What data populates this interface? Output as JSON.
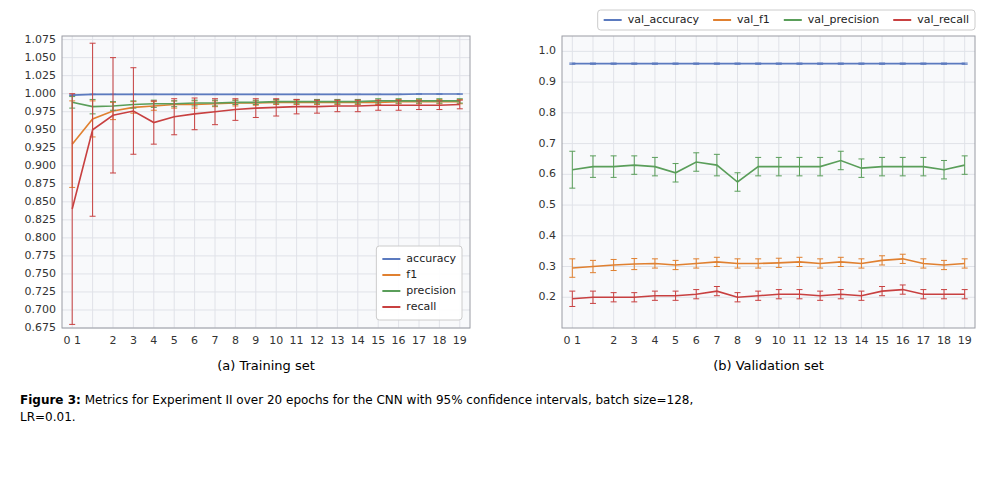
{
  "chart_data": [
    {
      "type": "line",
      "xlabel": "(a) Training set",
      "categories": [
        "0 1",
        null,
        "2",
        "3",
        "4",
        "5",
        "6",
        "7",
        "8",
        "9",
        "10",
        "11",
        "12",
        "13",
        "14",
        "15",
        "16",
        "17",
        "18",
        "19"
      ],
      "series": [
        {
          "name": "accuracy",
          "color": "#5b7abf",
          "values": [
            0.998,
            0.999,
            0.999,
            0.999,
            0.999,
            0.999,
            0.999,
            0.999,
            0.999,
            0.999,
            0.999,
            0.999,
            0.999,
            0.999,
            0.999,
            0.999,
            0.999,
            0.9995,
            0.9995,
            0.9995
          ],
          "errors": [
            0.0005,
            0.0003,
            0.0002,
            0.0002,
            0.0002,
            0.0002,
            0.0002,
            0.0002,
            0.0002,
            0.0002,
            0.0002,
            0.0002,
            0.0002,
            0.0002,
            0.0002,
            0.0002,
            0.0002,
            0.0002,
            0.0002,
            0.0002
          ]
        },
        {
          "name": "f1",
          "color": "#e08030",
          "values": [
            0.93,
            0.965,
            0.976,
            0.981,
            0.983,
            0.985,
            0.985,
            0.986,
            0.987,
            0.987,
            0.988,
            0.988,
            0.988,
            0.988,
            0.988,
            0.988,
            0.989,
            0.989,
            0.989,
            0.989
          ],
          "errors": [
            0.06,
            0.025,
            0.012,
            0.008,
            0.006,
            0.005,
            0.005,
            0.004,
            0.004,
            0.003,
            0.003,
            0.003,
            0.003,
            0.003,
            0.003,
            0.003,
            0.003,
            0.003,
            0.003,
            0.003
          ]
        },
        {
          "name": "precision",
          "color": "#5a9e5a",
          "values": [
            0.988,
            0.982,
            0.983,
            0.985,
            0.986,
            0.986,
            0.987,
            0.987,
            0.988,
            0.988,
            0.989,
            0.989,
            0.989,
            0.989,
            0.989,
            0.99,
            0.99,
            0.99,
            0.99,
            0.99
          ],
          "errors": [
            0.008,
            0.01,
            0.006,
            0.005,
            0.005,
            0.004,
            0.004,
            0.004,
            0.003,
            0.003,
            0.003,
            0.003,
            0.003,
            0.003,
            0.003,
            0.003,
            0.003,
            0.003,
            0.003,
            0.003
          ]
        },
        {
          "name": "recall",
          "color": "#c84040",
          "values": [
            0.84,
            0.95,
            0.97,
            0.976,
            0.96,
            0.968,
            0.972,
            0.975,
            0.978,
            0.98,
            0.981,
            0.982,
            0.982,
            0.983,
            0.983,
            0.984,
            0.984,
            0.984,
            0.984,
            0.985
          ],
          "errors": [
            0.16,
            0.12,
            0.08,
            0.06,
            0.03,
            0.025,
            0.022,
            0.018,
            0.015,
            0.013,
            0.012,
            0.01,
            0.009,
            0.008,
            0.008,
            0.007,
            0.007,
            0.006,
            0.006,
            0.006
          ]
        }
      ],
      "ylim": [
        0.675,
        1.08
      ],
      "yticks": [
        0.675,
        {
          "value": 0.7,
          "label": "0.700"
        },
        0.725,
        {
          "value": 0.75,
          "label": "0.750"
        },
        0.775,
        {
          "value": 0.8,
          "label": "0.800"
        },
        0.825,
        {
          "value": 0.85,
          "label": "0.850"
        },
        0.875,
        {
          "value": 0.9,
          "label": "0.900"
        },
        0.925,
        {
          "value": 0.95,
          "label": "0.950"
        },
        0.975,
        {
          "value": 1,
          "label": "1.000"
        },
        1.025,
        {
          "value": 1.05,
          "label": "1.050"
        },
        1.075
      ],
      "grid": true,
      "legend": "lower right",
      "annotations": [
        "Figure 3:",
        " Metrics for Experiment II over 20 epochs for the CNN with 95% confidence intervals, batch size=128,\nLR=0.01."
      ]
    },
    {
      "type": "line",
      "xlabel": "(b) Validation set",
      "categories": [
        "0 1",
        null,
        "2",
        "3",
        "4",
        "5",
        "6",
        "7",
        "8",
        "9",
        "10",
        "11",
        "12",
        "13",
        "14",
        "15",
        "16",
        "17",
        "18",
        "19"
      ],
      "series": [
        {
          "name": "val_accuracy",
          "color": "#5b7abf",
          "values": [
            0.96,
            0.96,
            0.96,
            0.96,
            0.96,
            0.96,
            0.96,
            0.96,
            0.96,
            0.96,
            0.96,
            0.96,
            0.96,
            0.96,
            0.96,
            0.96,
            0.96,
            0.96,
            0.96,
            0.96
          ],
          "errors": [
            0.002,
            0.002,
            0.002,
            0.002,
            0.002,
            0.002,
            0.002,
            0.002,
            0.002,
            0.002,
            0.002,
            0.002,
            0.002,
            0.002,
            0.002,
            0.002,
            0.002,
            0.002,
            0.002,
            0.002
          ]
        },
        {
          "name": "val_f1",
          "color": "#e08030",
          "values": [
            0.295,
            0.3,
            0.305,
            0.308,
            0.31,
            0.305,
            0.31,
            0.315,
            0.31,
            0.31,
            0.312,
            0.315,
            0.31,
            0.315,
            0.31,
            0.32,
            0.325,
            0.31,
            0.305,
            0.31
          ],
          "errors": [
            0.03,
            0.02,
            0.018,
            0.018,
            0.015,
            0.015,
            0.015,
            0.015,
            0.015,
            0.015,
            0.015,
            0.015,
            0.015,
            0.015,
            0.015,
            0.015,
            0.015,
            0.015,
            0.015,
            0.015
          ]
        },
        {
          "name": "val_precision",
          "color": "#5a9e5a",
          "values": [
            0.615,
            0.625,
            0.625,
            0.63,
            0.625,
            0.605,
            0.64,
            0.63,
            0.575,
            0.625,
            0.625,
            0.625,
            0.625,
            0.645,
            0.62,
            0.625,
            0.625,
            0.625,
            0.615,
            0.63
          ],
          "errors": [
            0.06,
            0.035,
            0.035,
            0.03,
            0.03,
            0.03,
            0.03,
            0.035,
            0.03,
            0.03,
            0.03,
            0.03,
            0.03,
            0.03,
            0.03,
            0.03,
            0.03,
            0.03,
            0.03,
            0.03
          ]
        },
        {
          "name": "val_recall",
          "color": "#c84040",
          "values": [
            0.195,
            0.2,
            0.2,
            0.2,
            0.205,
            0.205,
            0.21,
            0.22,
            0.2,
            0.205,
            0.21,
            0.21,
            0.205,
            0.21,
            0.205,
            0.22,
            0.225,
            0.21,
            0.21,
            0.21
          ],
          "errors": [
            0.025,
            0.02,
            0.015,
            0.015,
            0.015,
            0.015,
            0.015,
            0.015,
            0.015,
            0.015,
            0.015,
            0.015,
            0.015,
            0.015,
            0.015,
            0.015,
            0.015,
            0.015,
            0.015,
            0.015
          ]
        }
      ],
      "ylim": [
        0.1,
        1.05
      ],
      "yticks": [
        0.2,
        0.3,
        0.4,
        0.5,
        0.6,
        0.7,
        0.8,
        0.9,
        {
          "value": 1,
          "label": "1.0"
        }
      ],
      "grid": true,
      "legend": "upper right"
    }
  ]
}
